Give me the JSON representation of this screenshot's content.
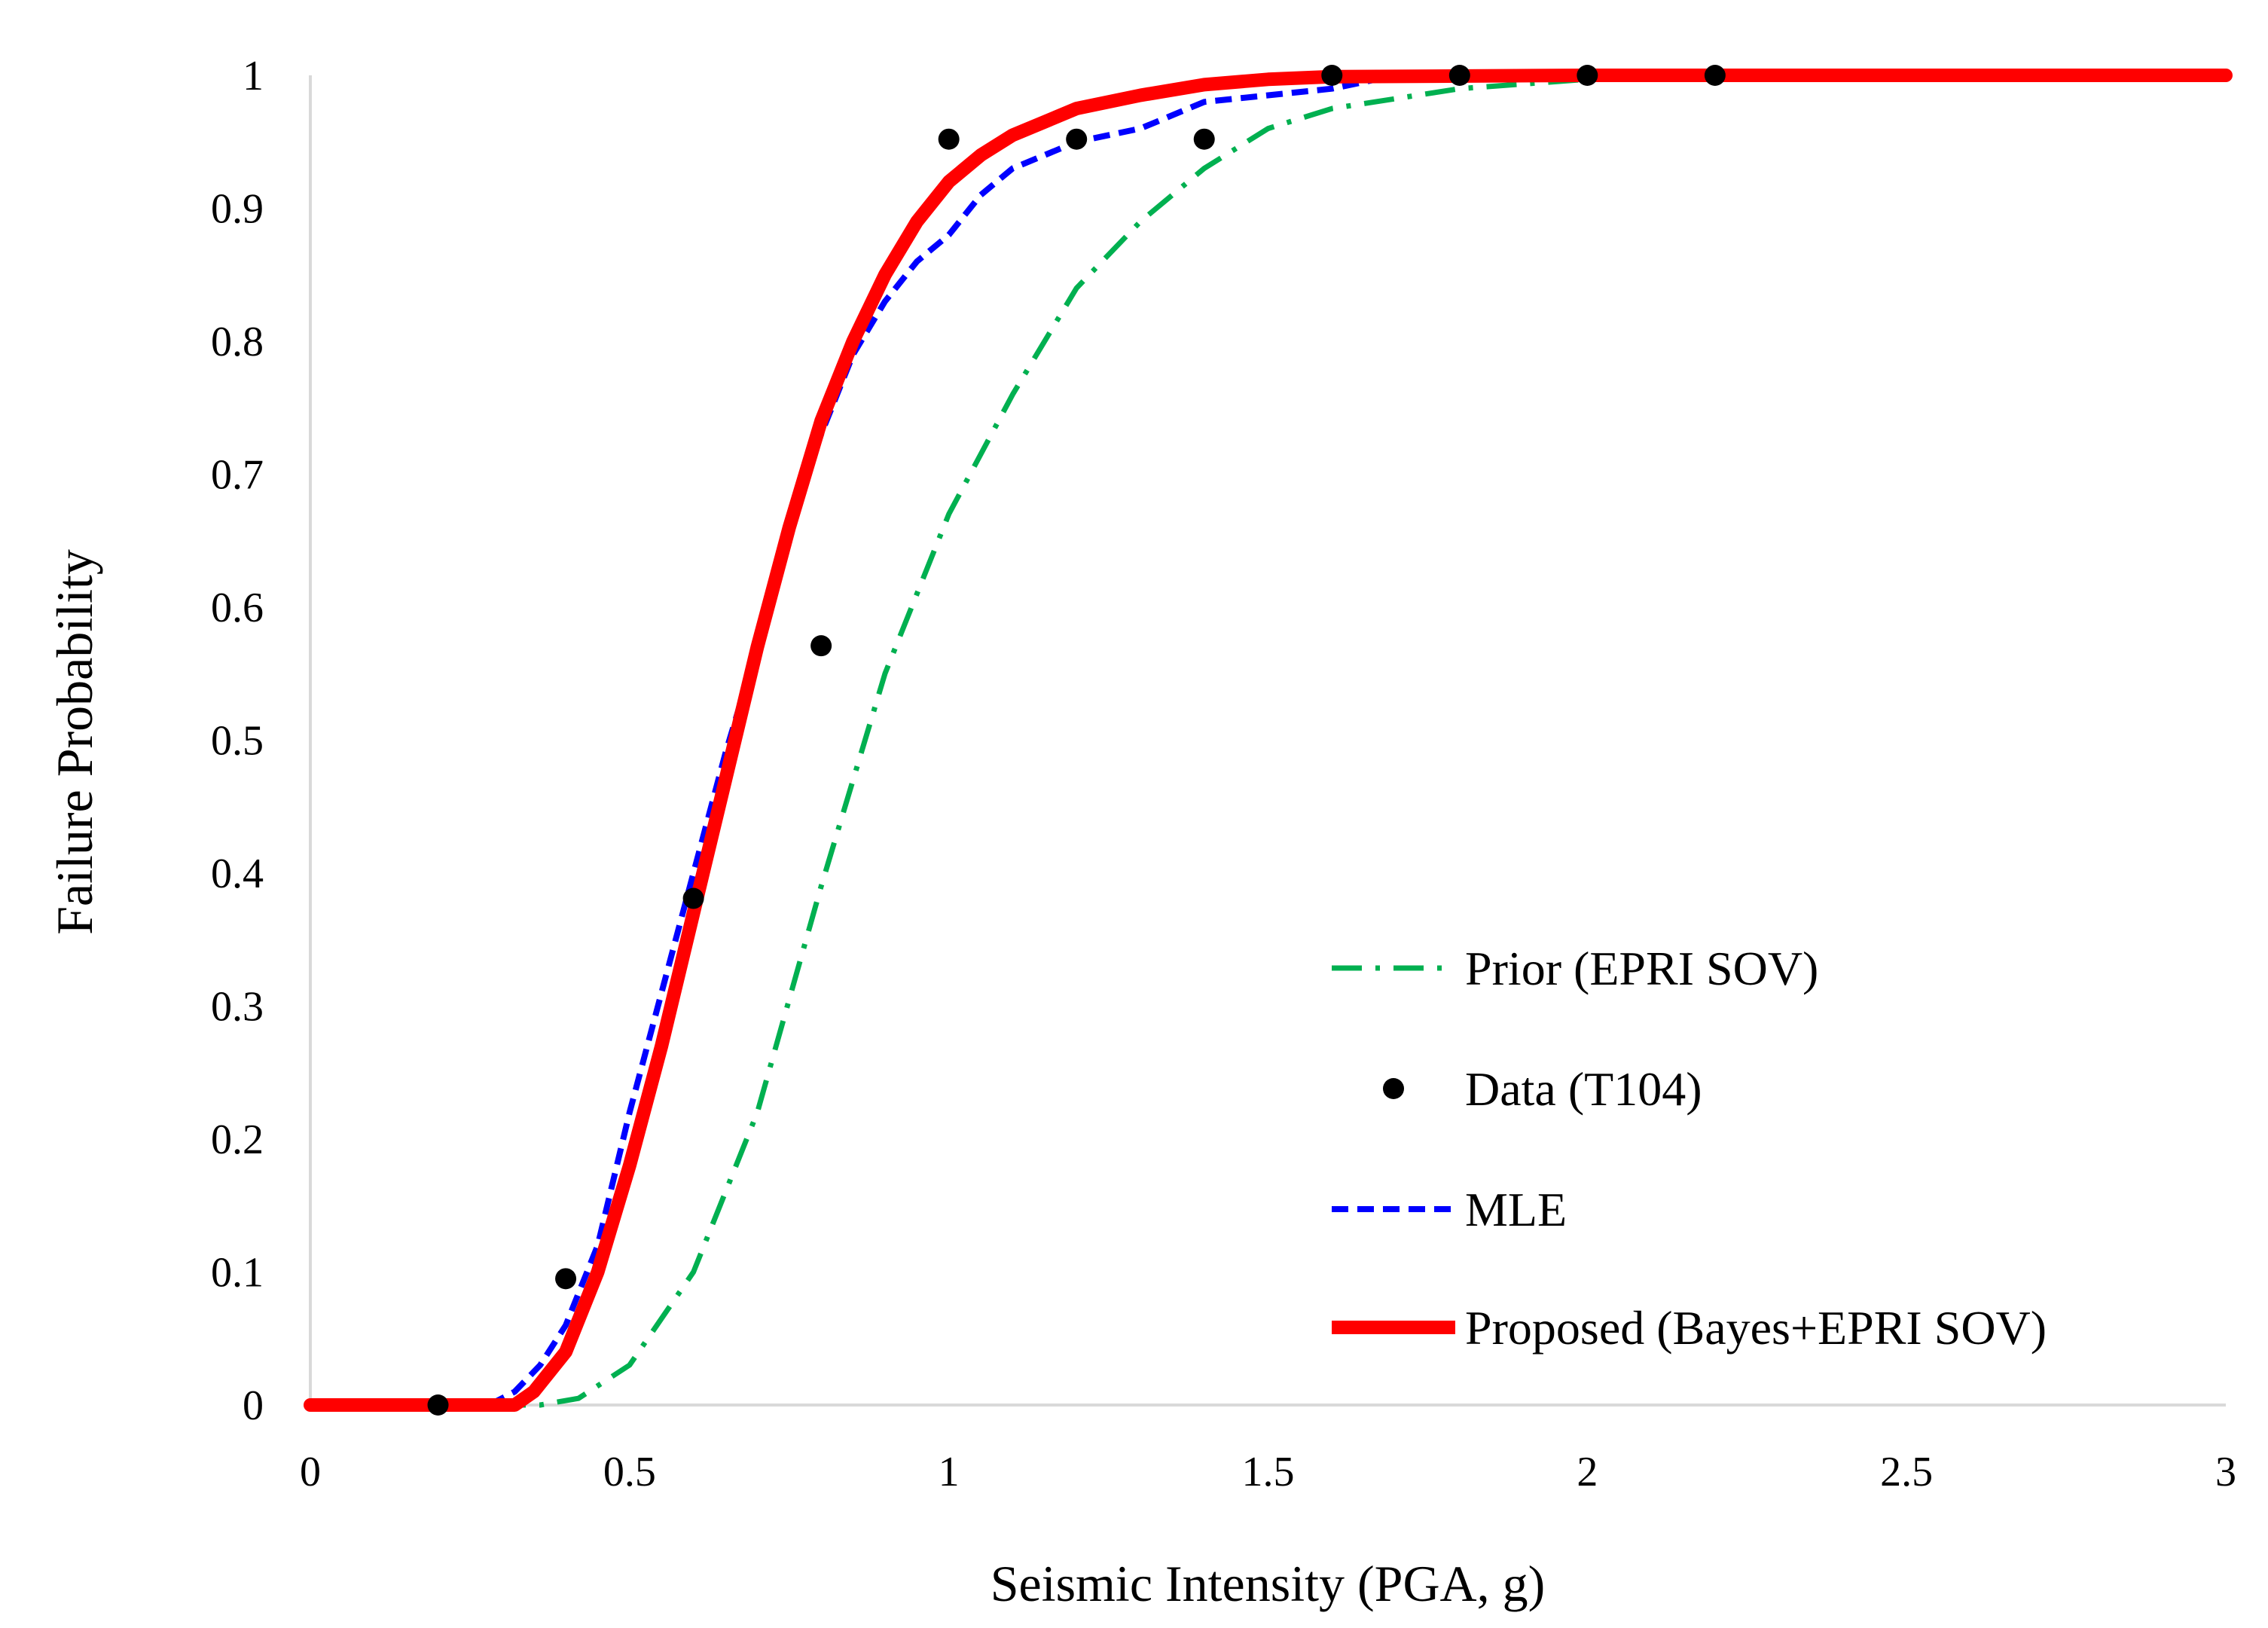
{
  "chart_data": {
    "type": "line",
    "title": "",
    "xlabel": "Seismic Intensity (PGA, g)",
    "ylabel": "Failure Probability",
    "xlim": [
      0,
      3
    ],
    "ylim": [
      0,
      1
    ],
    "xticks": [
      0,
      0.5,
      1,
      1.5,
      2,
      2.5,
      3
    ],
    "xtick_labels": [
      "0",
      "0.5",
      "1",
      "1.5",
      "2",
      "2.5",
      "3"
    ],
    "yticks": [
      0,
      0.1,
      0.2,
      0.3,
      0.4,
      0.5,
      0.6,
      0.7,
      0.8,
      0.9,
      1
    ],
    "ytick_labels": [
      "0",
      "0.1",
      "0.2",
      "0.3",
      "0.4",
      "0.5",
      "0.6",
      "0.7",
      "0.8",
      "0.9",
      "1"
    ],
    "grid": false,
    "legend_position": "bottom-right",
    "series": [
      {
        "name": "Prior (EPRI SOV)",
        "style": "dash-dot",
        "color": "#00b050",
        "x": [
          0,
          0.36,
          0.42,
          0.5,
          0.6,
          0.7,
          0.8,
          0.9,
          1.0,
          1.1,
          1.2,
          1.3,
          1.4,
          1.5,
          1.6,
          1.8,
          2.0,
          2.2,
          2.6,
          3.0
        ],
        "y": [
          0,
          0,
          0.005,
          0.03,
          0.1,
          0.22,
          0.39,
          0.55,
          0.67,
          0.76,
          0.84,
          0.89,
          0.93,
          0.96,
          0.975,
          0.99,
          0.997,
          0.999,
          1.0,
          1.0
        ]
      },
      {
        "name": "Data (T104)",
        "style": "marker",
        "color": "#000000",
        "x": [
          0.2,
          0.4,
          0.6,
          0.8,
          1.0,
          1.2,
          1.4,
          1.6,
          1.8,
          2.0,
          2.2
        ],
        "y": [
          0.0,
          0.095,
          0.381,
          0.571,
          0.952,
          0.952,
          0.952,
          1.0,
          1.0,
          1.0,
          1.0
        ]
      },
      {
        "name": "MLE",
        "style": "dashed",
        "color": "#0000ff",
        "x": [
          0,
          0.28,
          0.32,
          0.36,
          0.4,
          0.45,
          0.5,
          0.55,
          0.6,
          0.65,
          0.7,
          0.75,
          0.8,
          0.85,
          0.9,
          0.95,
          1.0,
          1.05,
          1.1,
          1.15,
          1.2,
          1.3,
          1.4,
          1.5,
          1.6,
          1.7,
          2.0,
          3.0
        ],
        "y": [
          0,
          0,
          0.01,
          0.03,
          0.06,
          0.12,
          0.22,
          0.31,
          0.4,
          0.49,
          0.57,
          0.66,
          0.73,
          0.79,
          0.83,
          0.86,
          0.88,
          0.91,
          0.93,
          0.94,
          0.95,
          0.96,
          0.98,
          0.985,
          0.99,
          1.0,
          1.0,
          1.0
        ]
      },
      {
        "name": "Proposed (Bayes+EPRI SOV)",
        "style": "solid-thick",
        "color": "#ff0000",
        "x": [
          0,
          0.32,
          0.35,
          0.4,
          0.45,
          0.5,
          0.55,
          0.6,
          0.65,
          0.7,
          0.75,
          0.8,
          0.85,
          0.9,
          0.95,
          1.0,
          1.05,
          1.1,
          1.15,
          1.2,
          1.3,
          1.4,
          1.5,
          1.6,
          2.0,
          3.0
        ],
        "y": [
          0,
          0,
          0.01,
          0.04,
          0.1,
          0.18,
          0.27,
          0.37,
          0.47,
          0.57,
          0.66,
          0.74,
          0.8,
          0.85,
          0.89,
          0.92,
          0.94,
          0.955,
          0.965,
          0.975,
          0.985,
          0.993,
          0.997,
          0.999,
          1.0,
          1.0
        ]
      }
    ]
  }
}
